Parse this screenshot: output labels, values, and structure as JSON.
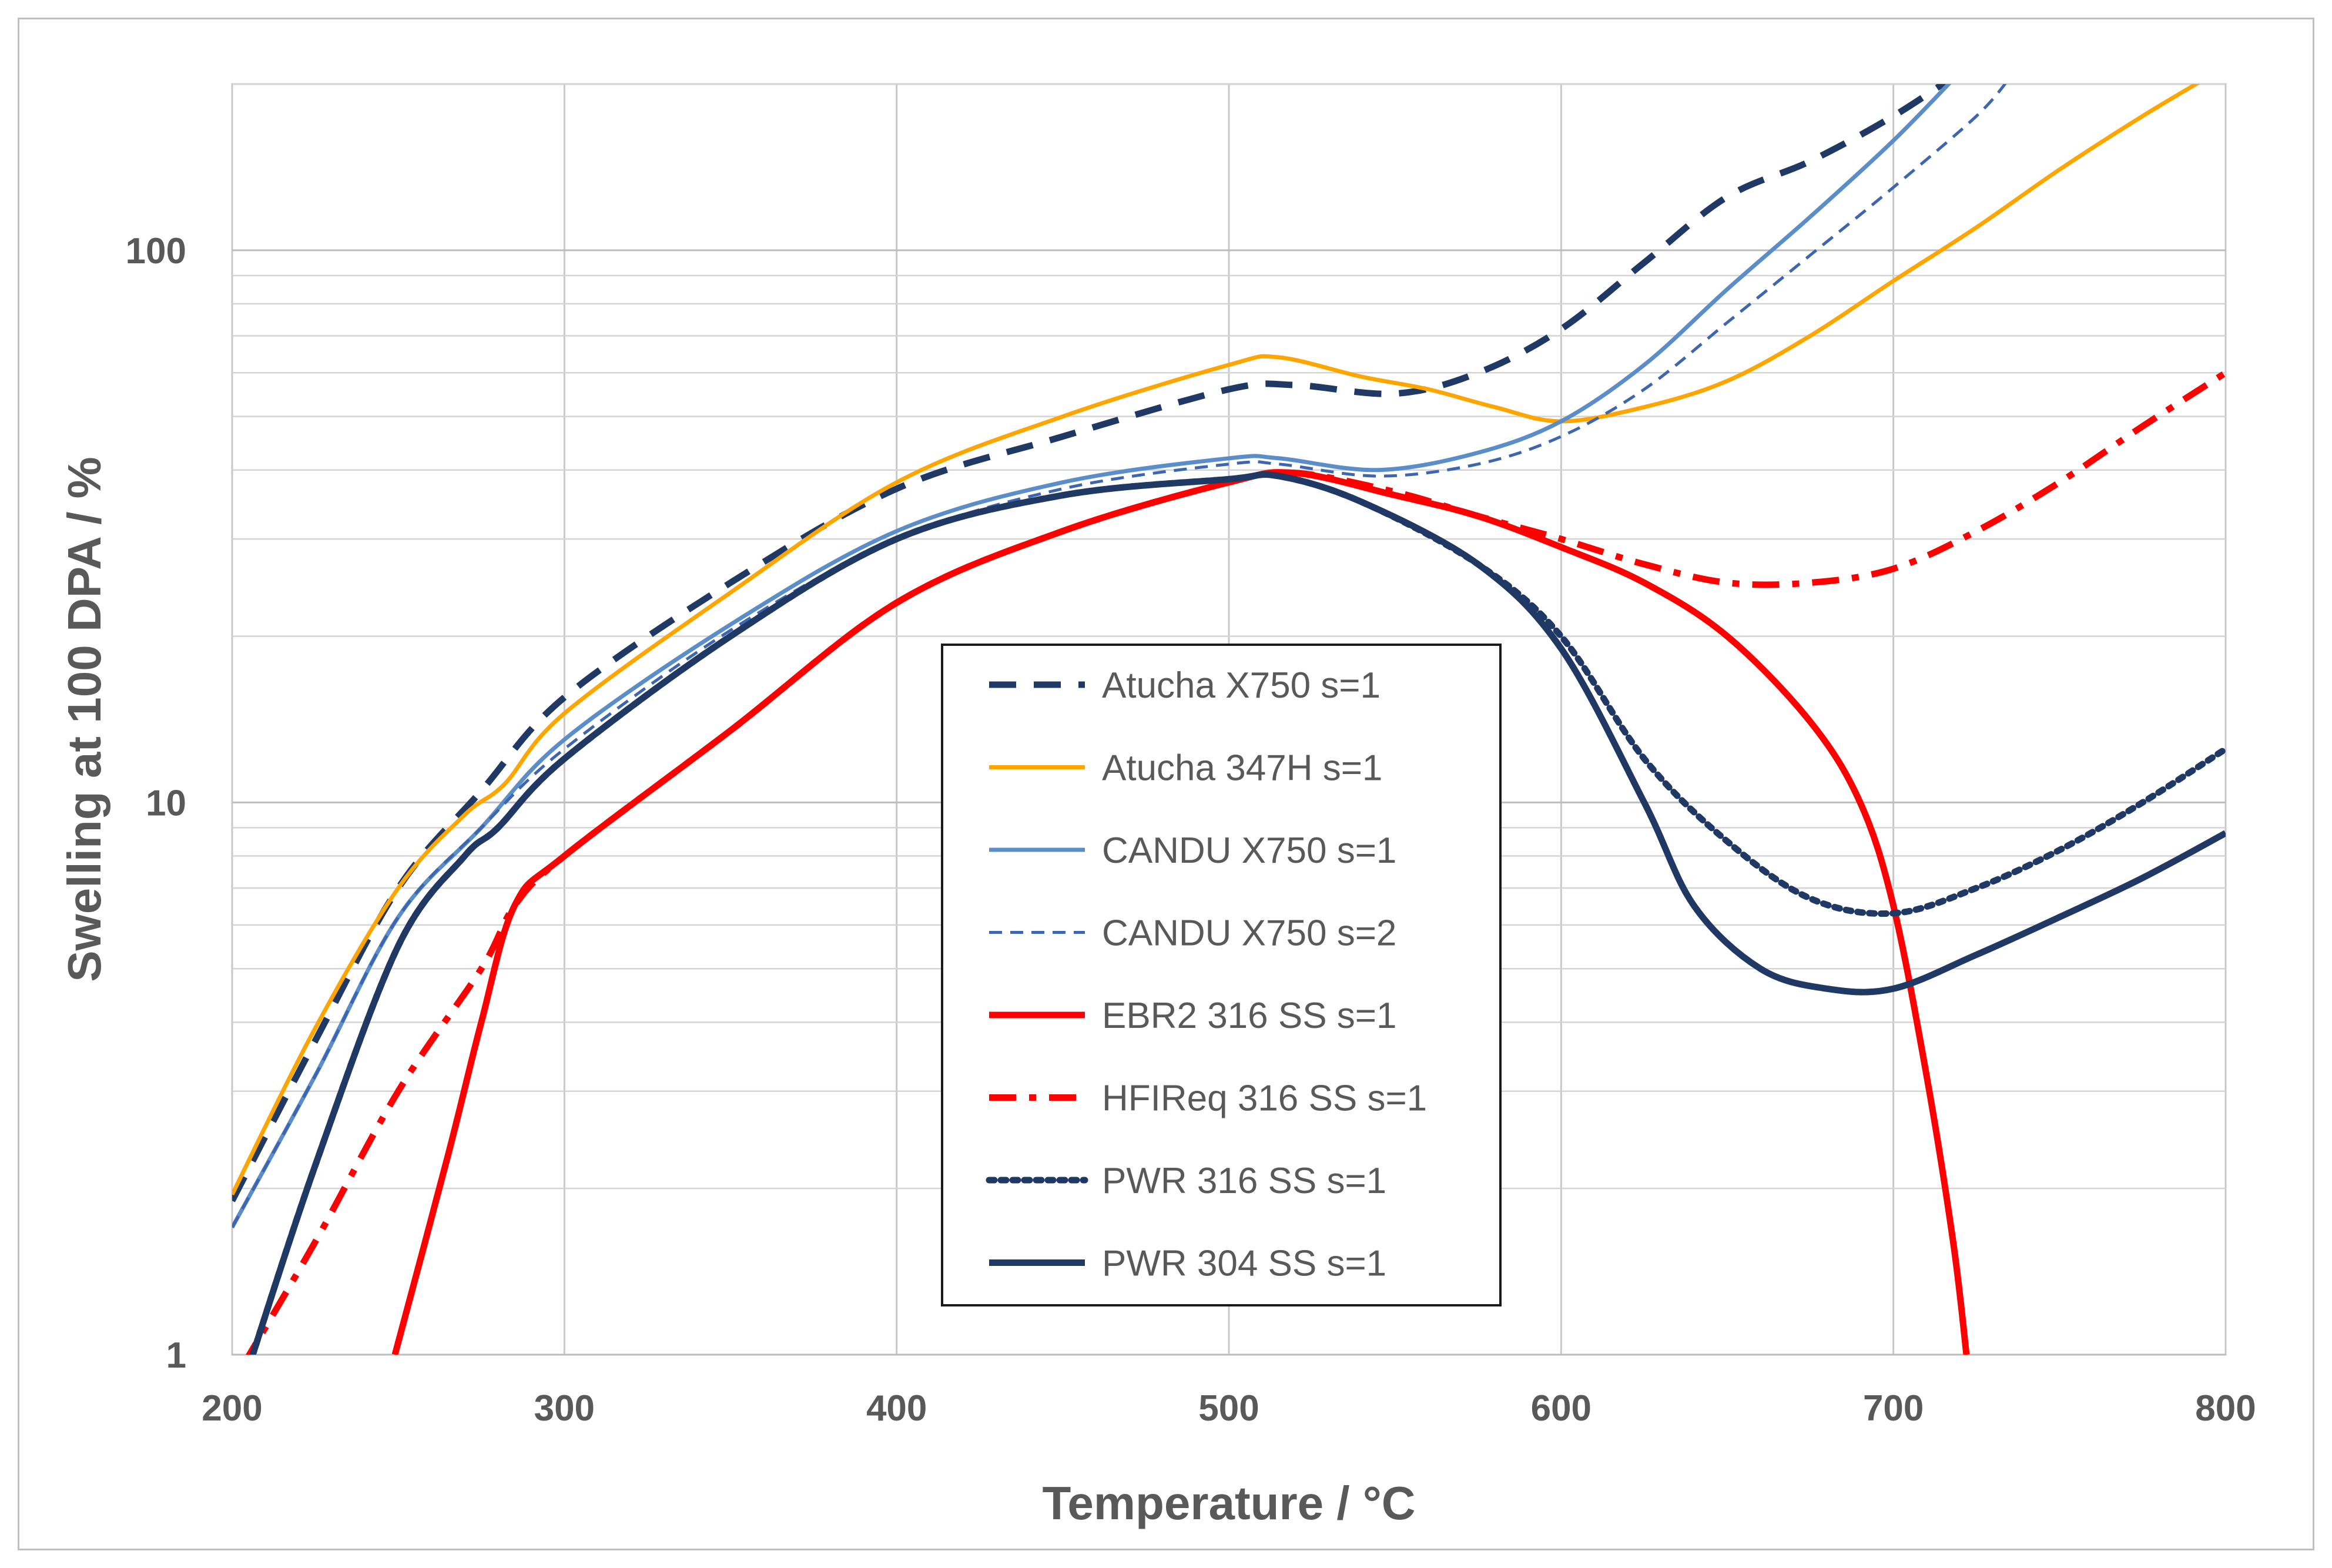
{
  "chart_data": {
    "type": "line",
    "title": "",
    "xlabel": "Temperature / °C",
    "ylabel": "Swelling at 100 DPA  / %",
    "xlim": [
      200,
      800
    ],
    "ylim": [
      1,
      200
    ],
    "yscale": "log",
    "x_ticks": [
      200,
      300,
      400,
      500,
      600,
      700,
      800
    ],
    "y_ticks": [
      1,
      10,
      100
    ],
    "grid": true,
    "legend_position": "center",
    "series": [
      {
        "name": "Atucha X750 s=1",
        "color": "#1f3864",
        "dash": "dashed",
        "width": "thick",
        "points": [
          [
            200,
            1.9
          ],
          [
            225,
            3.7
          ],
          [
            250,
            7.0
          ],
          [
            275,
            10.5
          ],
          [
            300,
            15.5
          ],
          [
            350,
            25
          ],
          [
            400,
            37
          ],
          [
            450,
            46
          ],
          [
            500,
            56
          ],
          [
            520,
            57
          ],
          [
            550,
            55
          ],
          [
            575,
            60
          ],
          [
            600,
            72
          ],
          [
            625,
            95
          ],
          [
            650,
            125
          ],
          [
            675,
            145
          ],
          [
            700,
            175
          ],
          [
            720,
            210
          ]
        ]
      },
      {
        "name": "Atucha 347H s=1",
        "color": "#ffa500",
        "dash": "solid",
        "width": "medium",
        "points": [
          [
            200,
            1.95
          ],
          [
            225,
            3.9
          ],
          [
            250,
            7.0
          ],
          [
            270,
            9.5
          ],
          [
            282,
            10.8
          ],
          [
            300,
            14.5
          ],
          [
            350,
            24
          ],
          [
            400,
            38
          ],
          [
            450,
            50
          ],
          [
            500,
            62
          ],
          [
            515,
            64
          ],
          [
            540,
            59
          ],
          [
            560,
            56
          ],
          [
            580,
            52
          ],
          [
            600,
            49
          ],
          [
            625,
            52
          ],
          [
            650,
            58
          ],
          [
            675,
            70
          ],
          [
            700,
            88
          ],
          [
            725,
            110
          ],
          [
            750,
            140
          ],
          [
            775,
            175
          ],
          [
            800,
            215
          ]
        ]
      },
      {
        "name": "CANDU X750 s=1",
        "color": "#5b8ec9",
        "dash": "solid",
        "width": "medium",
        "points": [
          [
            200,
            1.7
          ],
          [
            225,
            3.2
          ],
          [
            250,
            6.2
          ],
          [
            275,
            9.0
          ],
          [
            300,
            13
          ],
          [
            350,
            21
          ],
          [
            400,
            31
          ],
          [
            450,
            38
          ],
          [
            500,
            42
          ],
          [
            515,
            42
          ],
          [
            545,
            40
          ],
          [
            575,
            43
          ],
          [
            600,
            49
          ],
          [
            625,
            62
          ],
          [
            650,
            85
          ],
          [
            675,
            115
          ],
          [
            700,
            158
          ],
          [
            720,
            210
          ]
        ]
      },
      {
        "name": "CANDU X750 s=2",
        "color": "#3e65b0",
        "dash": "short-dash",
        "width": "thin",
        "points": [
          [
            200,
            1.7
          ],
          [
            225,
            3.2
          ],
          [
            250,
            6.2
          ],
          [
            275,
            9.0
          ],
          [
            300,
            12.5
          ],
          [
            350,
            20.5
          ],
          [
            400,
            30
          ],
          [
            450,
            37
          ],
          [
            500,
            41
          ],
          [
            515,
            41
          ],
          [
            545,
            39
          ],
          [
            575,
            41
          ],
          [
            600,
            46
          ],
          [
            625,
            56
          ],
          [
            650,
            74
          ],
          [
            675,
            98
          ],
          [
            700,
            130
          ],
          [
            725,
            175
          ],
          [
            735,
            205
          ]
        ]
      },
      {
        "name": "EBR2 316 SS s=1",
        "color": "#ff0000",
        "dash": "solid",
        "width": "thick",
        "points": [
          [
            249,
            1.0
          ],
          [
            265,
            2.3
          ],
          [
            275,
            4.0
          ],
          [
            285,
            6.5
          ],
          [
            300,
            8.0
          ],
          [
            350,
            13.5
          ],
          [
            400,
            23
          ],
          [
            450,
            31
          ],
          [
            500,
            38
          ],
          [
            520,
            39.5
          ],
          [
            550,
            36
          ],
          [
            575,
            33
          ],
          [
            600,
            29
          ],
          [
            625,
            25
          ],
          [
            650,
            20
          ],
          [
            675,
            14
          ],
          [
            690,
            10
          ],
          [
            700,
            6.5
          ],
          [
            710,
            3.2
          ],
          [
            718,
            1.6
          ],
          [
            722,
            1.0
          ]
        ]
      },
      {
        "name": "HFIReq 316 SS s=1",
        "color": "#ff0000",
        "dash": "dash-dot",
        "width": "thick",
        "points": [
          [
            203,
            0.95
          ],
          [
            225,
            1.6
          ],
          [
            250,
            3.0
          ],
          [
            275,
            5.0
          ],
          [
            285,
            6.5
          ],
          [
            300,
            8.0
          ],
          [
            350,
            13.5
          ],
          [
            400,
            23
          ],
          [
            450,
            31
          ],
          [
            500,
            38
          ],
          [
            520,
            39.5
          ],
          [
            550,
            36.5
          ],
          [
            575,
            33
          ],
          [
            600,
            30
          ],
          [
            625,
            27
          ],
          [
            650,
            25
          ],
          [
            675,
            25
          ],
          [
            700,
            26.5
          ],
          [
            725,
            31
          ],
          [
            750,
            38
          ],
          [
            775,
            48
          ],
          [
            800,
            60
          ]
        ]
      },
      {
        "name": "PWR 316 SS s=1",
        "color": "#1f3864",
        "dash": "dotted",
        "width": "thick",
        "points": [
          [
            205,
            0.95
          ],
          [
            225,
            2.2
          ],
          [
            250,
            5.5
          ],
          [
            270,
            8.0
          ],
          [
            280,
            9.0
          ],
          [
            300,
            12
          ],
          [
            350,
            20
          ],
          [
            400,
            30
          ],
          [
            450,
            36
          ],
          [
            500,
            38.5
          ],
          [
            515,
            39
          ],
          [
            540,
            35
          ],
          [
            575,
            27
          ],
          [
            600,
            20
          ],
          [
            625,
            12
          ],
          [
            650,
            8.5
          ],
          [
            675,
            6.7
          ],
          [
            700,
            6.3
          ],
          [
            725,
            7.0
          ],
          [
            750,
            8.2
          ],
          [
            775,
            10
          ],
          [
            800,
            12.5
          ]
        ]
      },
      {
        "name": "PWR 304 SS s=1",
        "color": "#1f3864",
        "dash": "solid",
        "width": "thick",
        "points": [
          [
            205,
            0.95
          ],
          [
            225,
            2.2
          ],
          [
            250,
            5.5
          ],
          [
            270,
            8.0
          ],
          [
            280,
            9.0
          ],
          [
            300,
            12
          ],
          [
            350,
            20
          ],
          [
            400,
            30
          ],
          [
            450,
            36
          ],
          [
            500,
            38.5
          ],
          [
            515,
            39
          ],
          [
            540,
            35
          ],
          [
            575,
            27
          ],
          [
            600,
            19
          ],
          [
            625,
            10
          ],
          [
            640,
            6.5
          ],
          [
            660,
            5.0
          ],
          [
            680,
            4.6
          ],
          [
            700,
            4.6
          ],
          [
            725,
            5.3
          ],
          [
            750,
            6.2
          ],
          [
            775,
            7.3
          ],
          [
            800,
            8.8
          ]
        ]
      }
    ]
  }
}
